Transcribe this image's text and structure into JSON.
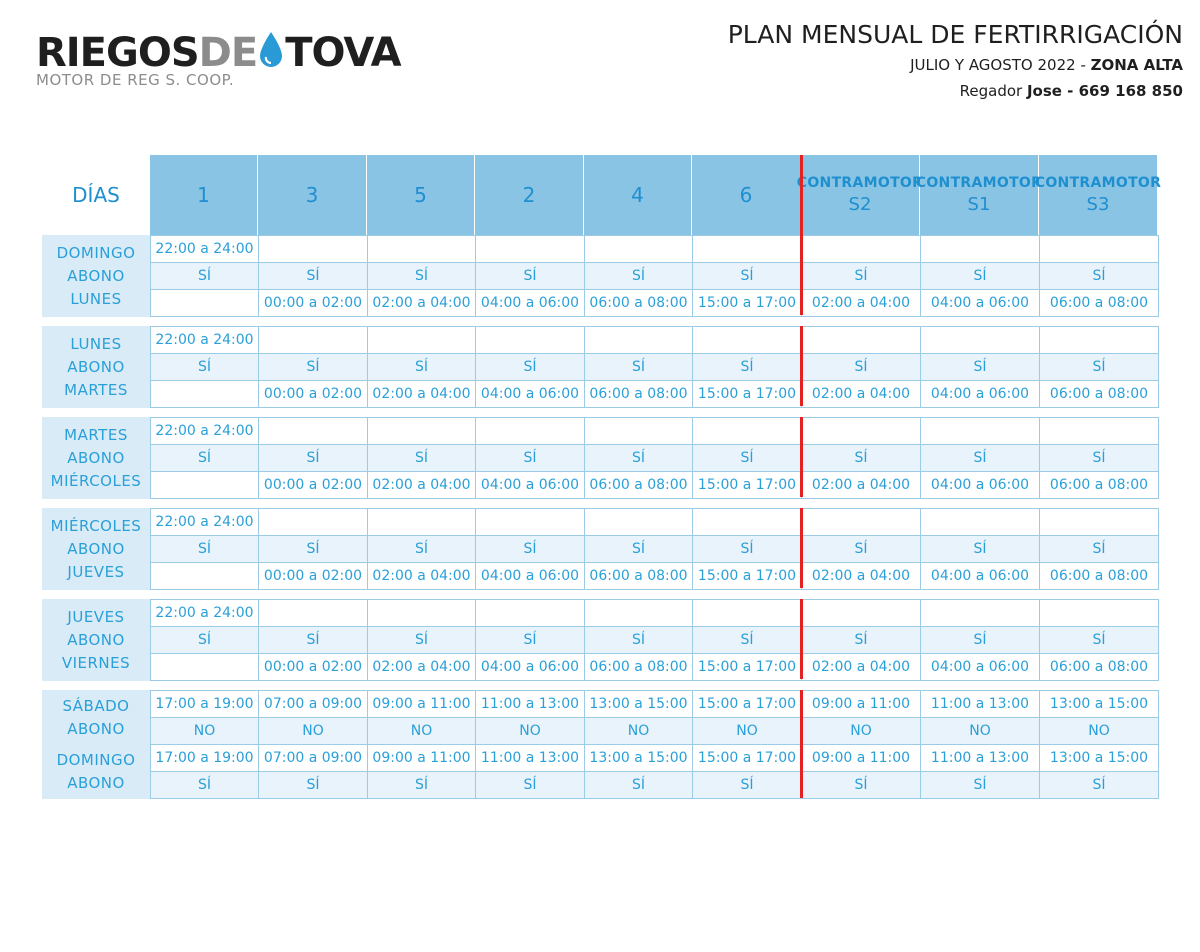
{
  "logo": {
    "brand_part1": "RIEGOS",
    "brand_part2": "DE",
    "brand_part3": "TOVA",
    "subtitle": "MOTOR DE REG S. COOP.",
    "drop_color": "#2a9ad6"
  },
  "header": {
    "title": "PLAN MENSUAL DE FERTIRRIGACIÓN",
    "period": "JULIO Y AGOSTO 2022 - ",
    "zone": "ZONA ALTA",
    "irrigator_prefix": "Regador ",
    "irrigator": "Jose - 669 168 850"
  },
  "colors": {
    "accent": "#2aa0d8",
    "header_bg": "#8ac4e5",
    "label_bg": "#d9ebf7",
    "row_bg": "#e9f3fb",
    "divider": "#e32221"
  },
  "table": {
    "days_header": "DÍAS",
    "columns": [
      {
        "num": "1"
      },
      {
        "num": "3"
      },
      {
        "num": "5"
      },
      {
        "num": "2"
      },
      {
        "num": "4"
      },
      {
        "num": "6"
      },
      {
        "top": "CONTRAMOTOR",
        "sub": "S2"
      },
      {
        "top": "CONTRAMOTOR",
        "sub": "S1"
      },
      {
        "top": "CONTRAMOTOR",
        "sub": "S3"
      }
    ],
    "groups": [
      {
        "labels": [
          "DOMINGO",
          "ABONO",
          "LUNES"
        ],
        "rows": [
          [
            "22:00 a 24:00",
            "",
            "",
            "",
            "",
            "",
            "",
            "",
            ""
          ],
          [
            "SÍ",
            "SÍ",
            "SÍ",
            "SÍ",
            "SÍ",
            "SÍ",
            "SÍ",
            "SÍ",
            "SÍ"
          ],
          [
            "",
            "00:00 a 02:00",
            "02:00 a 04:00",
            "04:00 a 06:00",
            "06:00 a 08:00",
            "15:00 a 17:00",
            "02:00 a 04:00",
            "04:00 a 06:00",
            "06:00 a 08:00"
          ]
        ]
      },
      {
        "labels": [
          "LUNES",
          "ABONO",
          "MARTES"
        ],
        "rows": [
          [
            "22:00 a 24:00",
            "",
            "",
            "",
            "",
            "",
            "",
            "",
            ""
          ],
          [
            "SÍ",
            "SÍ",
            "SÍ",
            "SÍ",
            "SÍ",
            "SÍ",
            "SÍ",
            "SÍ",
            "SÍ"
          ],
          [
            "",
            "00:00 a 02:00",
            "02:00 a 04:00",
            "04:00 a 06:00",
            "06:00 a 08:00",
            "15:00 a 17:00",
            "02:00 a 04:00",
            "04:00 a 06:00",
            "06:00 a 08:00"
          ]
        ]
      },
      {
        "labels": [
          "MARTES",
          "ABONO",
          "MIÉRCOLES"
        ],
        "rows": [
          [
            "22:00 a 24:00",
            "",
            "",
            "",
            "",
            "",
            "",
            "",
            ""
          ],
          [
            "SÍ",
            "SÍ",
            "SÍ",
            "SÍ",
            "SÍ",
            "SÍ",
            "SÍ",
            "SÍ",
            "SÍ"
          ],
          [
            "",
            "00:00 a 02:00",
            "02:00 a 04:00",
            "04:00 a 06:00",
            "06:00 a 08:00",
            "15:00 a 17:00",
            "02:00 a 04:00",
            "04:00 a 06:00",
            "06:00 a 08:00"
          ]
        ]
      },
      {
        "labels": [
          "MIÉRCOLES",
          "ABONO",
          "JUEVES"
        ],
        "rows": [
          [
            "22:00 a 24:00",
            "",
            "",
            "",
            "",
            "",
            "",
            "",
            ""
          ],
          [
            "SÍ",
            "SÍ",
            "SÍ",
            "SÍ",
            "SÍ",
            "SÍ",
            "SÍ",
            "SÍ",
            "SÍ"
          ],
          [
            "",
            "00:00 a 02:00",
            "02:00 a 04:00",
            "04:00 a 06:00",
            "06:00 a 08:00",
            "15:00 a 17:00",
            "02:00 a 04:00",
            "04:00 a 06:00",
            "06:00 a 08:00"
          ]
        ]
      },
      {
        "labels": [
          "JUEVES",
          "ABONO",
          "VIERNES"
        ],
        "rows": [
          [
            "22:00 a 24:00",
            "",
            "",
            "",
            "",
            "",
            "",
            "",
            ""
          ],
          [
            "SÍ",
            "SÍ",
            "SÍ",
            "SÍ",
            "SÍ",
            "SÍ",
            "SÍ",
            "SÍ",
            "SÍ"
          ],
          [
            "",
            "00:00 a 02:00",
            "02:00 a 04:00",
            "04:00 a 06:00",
            "06:00 a 08:00",
            "15:00 a 17:00",
            "02:00 a 04:00",
            "04:00 a 06:00",
            "06:00 a 08:00"
          ]
        ]
      }
    ],
    "weekend": [
      {
        "labels": [
          "SÁBADO",
          "ABONO"
        ],
        "rows": [
          [
            "17:00 a 19:00",
            "07:00 a 09:00",
            "09:00 a 11:00",
            "11:00 a 13:00",
            "13:00 a 15:00",
            "15:00 a 17:00",
            "09:00 a 11:00",
            "11:00 a 13:00",
            "13:00 a 15:00"
          ],
          [
            "NO",
            "NO",
            "NO",
            "NO",
            "NO",
            "NO",
            "NO",
            "NO",
            "NO"
          ]
        ]
      },
      {
        "labels": [
          "DOMINGO",
          "ABONO"
        ],
        "rows": [
          [
            "17:00 a 19:00",
            "07:00 a 09:00",
            "09:00 a 11:00",
            "11:00 a 13:00",
            "13:00 a 15:00",
            "15:00 a 17:00",
            "09:00 a 11:00",
            "11:00 a 13:00",
            "13:00 a 15:00"
          ],
          [
            "SÍ",
            "SÍ",
            "SÍ",
            "SÍ",
            "SÍ",
            "SÍ",
            "SÍ",
            "SÍ",
            "SÍ"
          ]
        ]
      }
    ]
  }
}
